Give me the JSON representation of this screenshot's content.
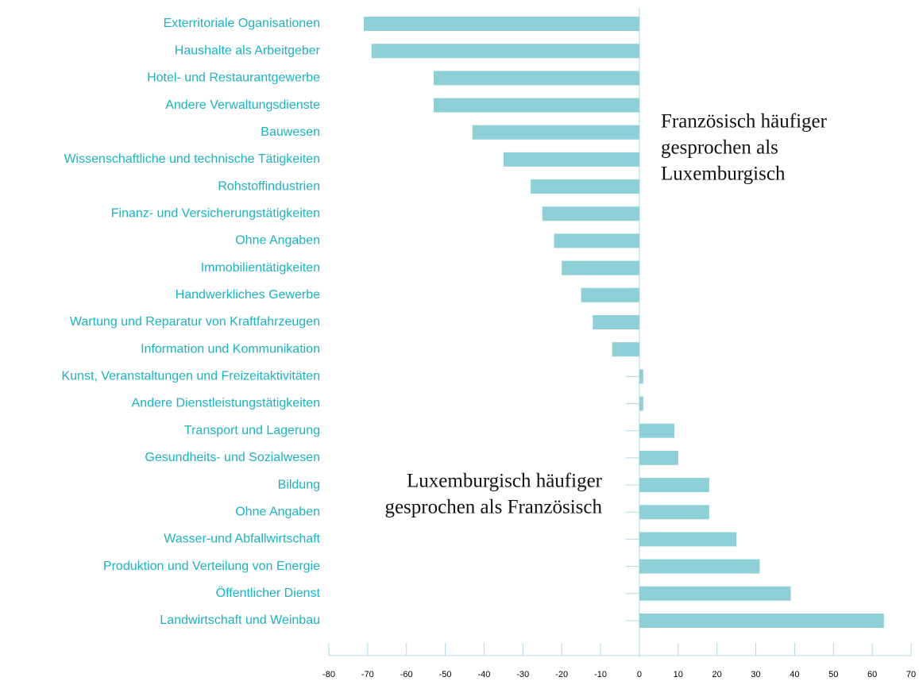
{
  "chart_data": {
    "type": "barh",
    "categories": [
      "Exterritoriale Oganisationen",
      "Haushalte als Arbeitgeber",
      "Hotel- und Restaurantgewerbe",
      "Andere Verwaltungsdienste",
      "Bauwesen",
      "Wissenschaftliche und technische Tätigkeiten",
      "Rohstoffindustrien",
      "Finanz- und Versicherungstätigkeiten",
      "Ohne Angaben",
      "Immobilientätigkeiten",
      "Handwerkliches Gewerbe",
      "Wartung und Reparatur von Kraftfahrzeugen",
      "Information und Kommunikation",
      "Kunst, Veranstaltungen und Freizeitaktivitäten",
      "Andere Dienstleistungstätigkeiten",
      "Transport und Lagerung",
      "Gesundheits- und Sozialwesen",
      "Bildung",
      "Ohne Angaben",
      "Wasser-und Abfallwirtschaft",
      "Produktion und Verteilung von Energie",
      "Öffentlicher Dienst",
      "Landwirtschaft und Weinbau"
    ],
    "values": [
      -71,
      -69,
      -53,
      -53,
      -43,
      -35,
      -28,
      -25,
      -22,
      -20,
      -15,
      -12,
      -7,
      1,
      1,
      9,
      10,
      18,
      18,
      25,
      31,
      39,
      63
    ],
    "color": "#8dd0d8",
    "xlim": [
      -80,
      70
    ],
    "xticks": [
      -80,
      -70,
      -60,
      -50,
      -40,
      -30,
      -20,
      -10,
      0,
      10,
      20,
      30,
      40,
      50,
      60,
      70
    ],
    "annotations": [
      {
        "lines": [
          "Französisch häufiger",
          "gesprochen als",
          "Luxemburgisch"
        ]
      },
      {
        "lines": [
          "Luxemburgisch häufiger",
          "gesprochen als Französisch"
        ]
      }
    ]
  }
}
